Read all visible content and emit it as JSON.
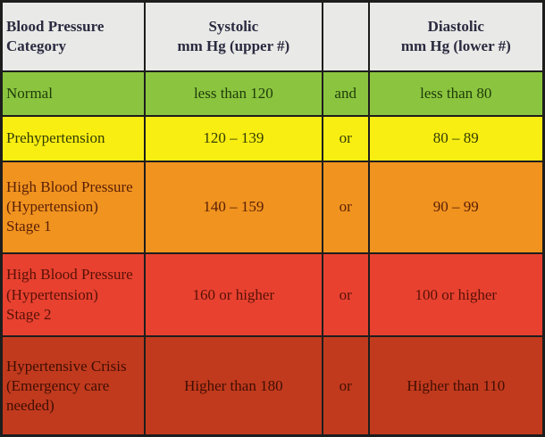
{
  "chart_data": {
    "type": "table",
    "columns": [
      "Blood Pressure Category",
      "Systolic mm Hg (upper #)",
      "",
      "Diastolic mm Hg (lower #)"
    ],
    "header": {
      "category": "Blood Pressure\nCategory",
      "systolic": "Systolic\nmm Hg (upper #)",
      "connector": "",
      "diastolic": "Diastolic\nmm Hg (lower #)",
      "bg": "#e9e9e7",
      "fg": "#2a2a40"
    },
    "rows": [
      {
        "category": "Normal",
        "systolic": "less than 120",
        "connector": "and",
        "diastolic": "less than 80",
        "bg": "#8bc53f",
        "fg": "#1e3a0a"
      },
      {
        "category": "Prehypertension",
        "systolic": "120 – 139",
        "connector": "or",
        "diastolic": "80 – 89",
        "bg": "#f9ee12",
        "fg": "#333d04"
      },
      {
        "category": "High Blood Pressure\n(Hypertension)\nStage 1",
        "systolic": "140 – 159",
        "connector": "or",
        "diastolic": "90 – 99",
        "bg": "#f0931f",
        "fg": "#5a1f07"
      },
      {
        "category": "High Blood Pressure\n(Hypertension)\nStage 2",
        "systolic": "160 or higher",
        "connector": "or",
        "diastolic": "100 or higher",
        "bg": "#e84130",
        "fg": "#581106"
      },
      {
        "category": "Hypertensive Crisis\n(Emergency care\nneeded)",
        "systolic": "Higher than 180",
        "connector": "or",
        "diastolic": "Higher than 110",
        "bg": "#c13a1d",
        "fg": "#400e04"
      }
    ],
    "border_color": "#1d1d1d"
  }
}
